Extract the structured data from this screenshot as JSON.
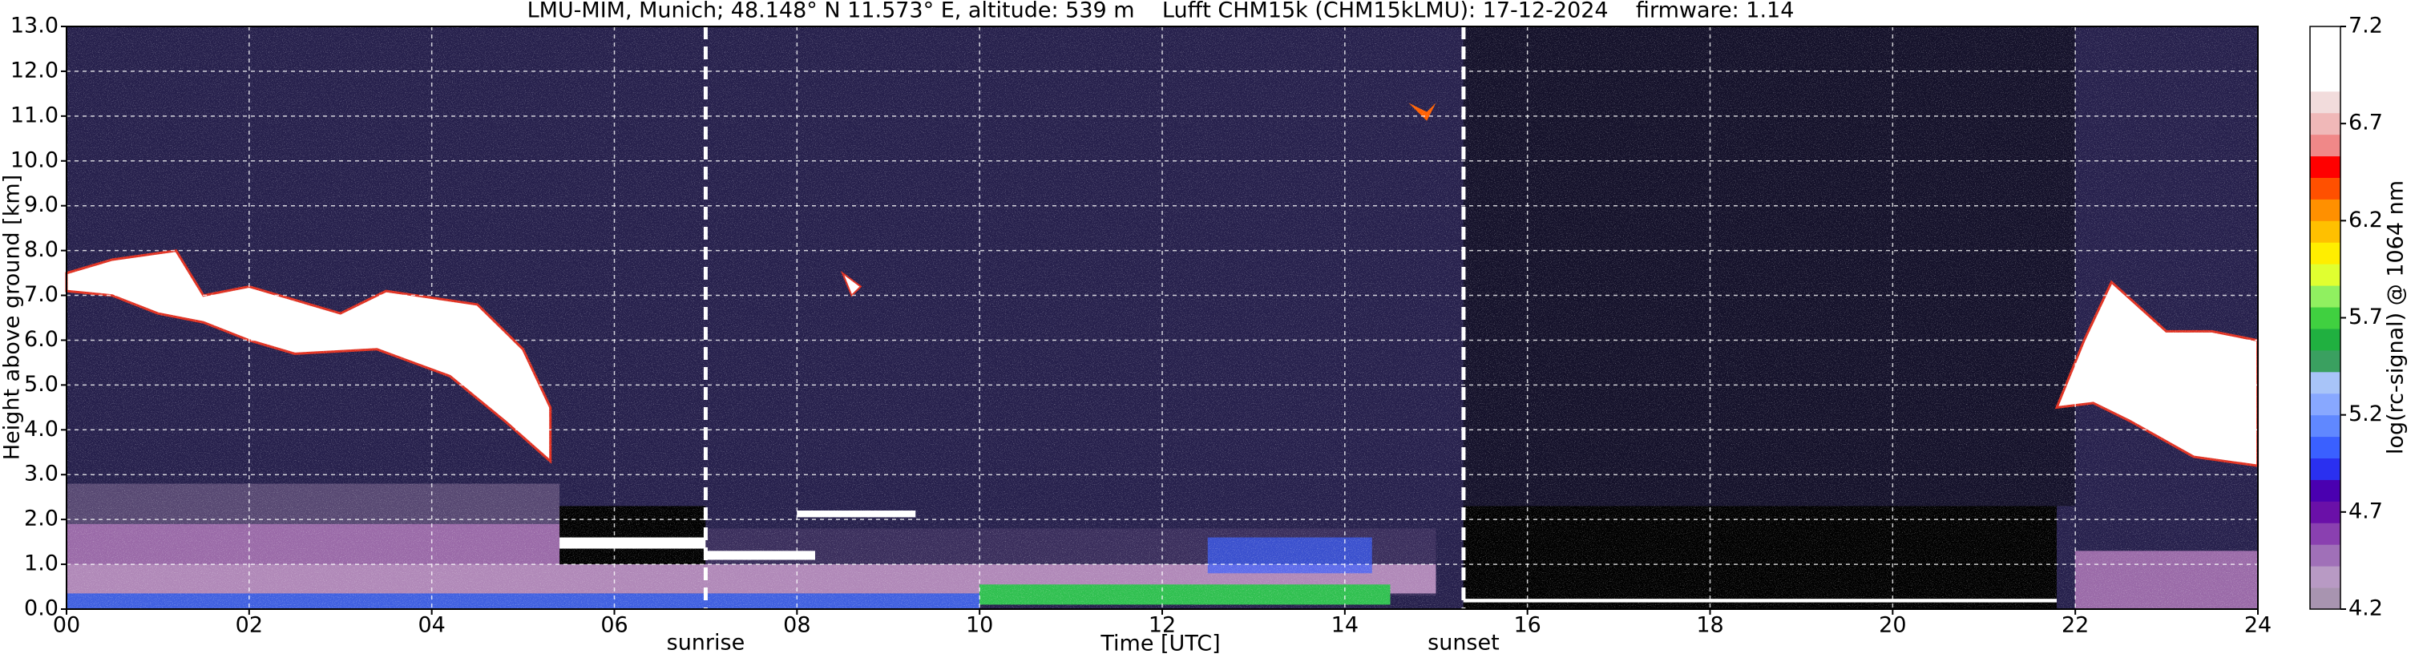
{
  "chart_data": {
    "type": "heatmap",
    "title": "LMU-MIM, Munich; 48.148° N 11.573° E, altitude: 539 m    Lufft CHM15k (CHM15kLMU): 17-12-2024    firmware: 1.14",
    "x_label": "Time [UTC]",
    "y_label": "Height above ground [km]",
    "xlim": [
      0,
      24
    ],
    "xticks": [
      {
        "value": 0,
        "label": "00"
      },
      {
        "value": 2,
        "label": "02"
      },
      {
        "value": 4,
        "label": "04"
      },
      {
        "value": 6,
        "label": "06"
      },
      {
        "value": 8,
        "label": "08"
      },
      10,
      12,
      14,
      16,
      18,
      20,
      22,
      24
    ],
    "ylim": [
      0,
      13
    ],
    "yticks": [
      {
        "value": 0,
        "label": "0.0"
      },
      {
        "value": 1,
        "label": "1.0"
      },
      {
        "value": 2,
        "label": "2.0"
      },
      {
        "value": 3,
        "label": "3.0"
      },
      {
        "value": 4,
        "label": "4.0"
      },
      {
        "value": 5,
        "label": "5.0"
      },
      {
        "value": 6,
        "label": "6.0"
      },
      {
        "value": 7,
        "label": "7.0"
      },
      {
        "value": 8,
        "label": "8.0"
      },
      {
        "value": 9,
        "label": "9.0"
      },
      {
        "value": 10,
        "label": "10.0"
      },
      {
        "value": 11,
        "label": "11.0"
      },
      {
        "value": 12,
        "label": "12.0"
      },
      {
        "value": 13,
        "label": "13.0"
      }
    ],
    "grid": true,
    "annotations": [
      {
        "text": "sunrise",
        "x": 7.0
      },
      {
        "text": "sunset",
        "x": 15.3
      }
    ],
    "colorbar": {
      "label": "log(rc-signal) @ 1064 nm",
      "lim": [
        4.2,
        7.2
      ],
      "ticks": [
        4.2,
        4.7,
        5.2,
        5.7,
        6.2,
        6.7,
        7.2
      ],
      "colors": [
        "#a894b0",
        "#b89ac4",
        "#a070b8",
        "#8a40b0",
        "#6a10a8",
        "#4a00b0",
        "#2a30f0",
        "#3a60ff",
        "#6088ff",
        "#88a8ff",
        "#a8c4f8",
        "#3aa060",
        "#20b040",
        "#40d040",
        "#90f060",
        "#e0ff30",
        "#ffee00",
        "#ffc000",
        "#ff9000",
        "#ff5000",
        "#ff0000",
        "#f08888",
        "#f0b8b8",
        "#f2dcdc",
        "#ffffff",
        "#ffffff",
        "#ffffff"
      ]
    }
  }
}
